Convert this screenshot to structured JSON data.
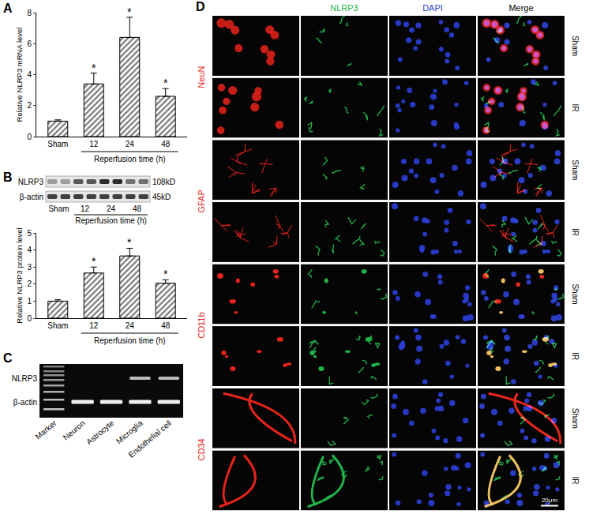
{
  "panel_labels": [
    "A",
    "B",
    "C",
    "D"
  ],
  "chart_data": [
    {
      "type": "bar",
      "ylabel": "Relative NLRP3 mRNA level",
      "xlabel": "Reperfusion time (h)",
      "categories": [
        "Sham",
        "12",
        "24",
        "48"
      ],
      "values": [
        1.0,
        3.4,
        6.4,
        2.6
      ],
      "errors": [
        0.08,
        0.7,
        1.3,
        0.5
      ],
      "color": "#7a7a7a",
      "ylim": [
        0,
        8
      ],
      "yticks": [
        0,
        2,
        4,
        6,
        8
      ],
      "annotations": [
        {
          "category": "12",
          "text": "*"
        },
        {
          "category": "24",
          "text": "*"
        },
        {
          "category": "48",
          "text": "*"
        }
      ]
    },
    {
      "type": "bar",
      "ylabel": "Relative NLRP3 protein level",
      "xlabel": "Reperfusion time (h)",
      "categories": [
        "Sham",
        "12",
        "24",
        "48"
      ],
      "values": [
        1.0,
        2.65,
        3.65,
        2.05
      ],
      "errors": [
        0.08,
        0.35,
        0.45,
        0.2
      ],
      "color": "#7a7a7a",
      "ylim": [
        0,
        5
      ],
      "yticks": [
        0,
        1,
        2,
        3,
        4,
        5
      ],
      "annotations": [
        {
          "category": "12",
          "text": "*"
        },
        {
          "category": "24",
          "text": "*"
        },
        {
          "category": "48",
          "text": "*"
        }
      ]
    }
  ],
  "western_blot": {
    "rows": [
      {
        "protein": "NLRP3",
        "size": "108kD"
      },
      {
        "protein": "β-actin",
        "size": "45kD"
      }
    ],
    "lanes_per_group": 2
  },
  "gel": {
    "rows": [
      "NLRP3",
      "β-actin"
    ],
    "lanes": [
      "Marker",
      "Neuron",
      "Astrocyte",
      "Microglia",
      "Endothelial cell"
    ],
    "nlrp3_detected": [
      false,
      false,
      false,
      true,
      true
    ]
  },
  "micrograph": {
    "columns": [
      {
        "text": "NLRP3",
        "color": "#22b34a"
      },
      {
        "text": "DAPI",
        "color": "#2b3fd9"
      },
      {
        "text": "Merge",
        "color": "#000000"
      }
    ],
    "markers": [
      {
        "text": "NeuN",
        "color": "#e8231b"
      },
      {
        "text": "GFAP",
        "color": "#e8231b"
      },
      {
        "text": "CD11b",
        "color": "#e8231b"
      },
      {
        "text": "CD34",
        "color": "#e8231b"
      }
    ],
    "conditions": [
      "Sham",
      "IR"
    ],
    "scale_bar": "20μm"
  }
}
